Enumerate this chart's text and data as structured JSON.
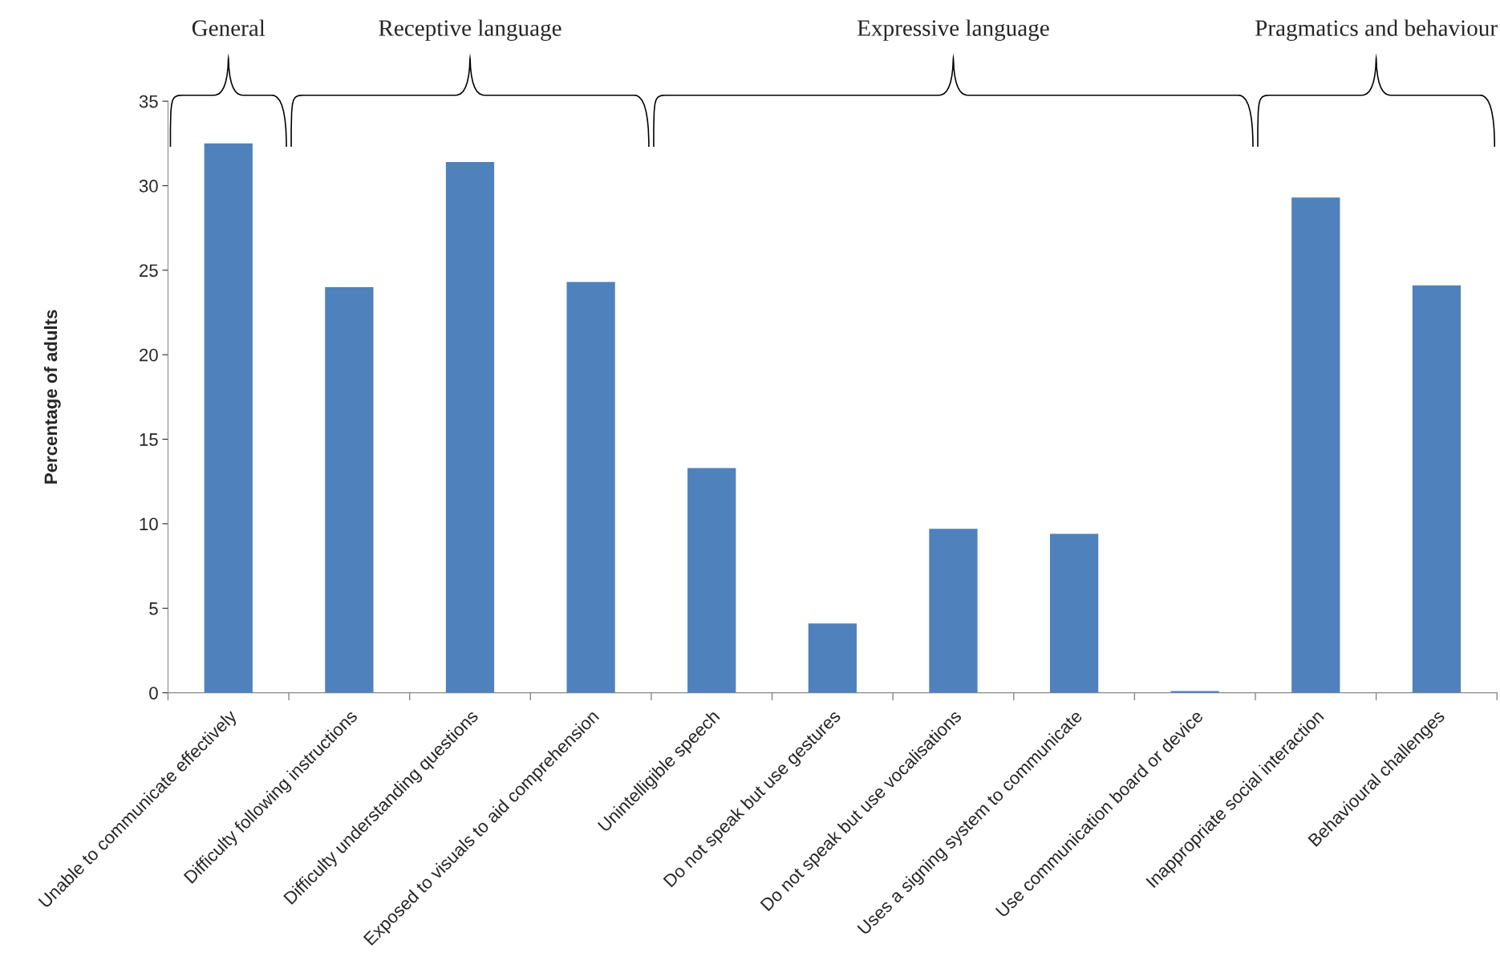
{
  "chart_data": {
    "type": "bar",
    "ylabel": "Percentage of adults",
    "categories": [
      "Unable to communicate effectively",
      "Difficulty following instructions",
      "Difficulty understanding questions",
      "Exposed to visuals to aid comprehension",
      "Unintelligible speech",
      "Do not speak but use gestures",
      "Do not speak but use vocalisations",
      "Uses a signing system to communicate",
      "Use communication board or device",
      "Inappropriate social interaction",
      "Behavioural challenges"
    ],
    "values": [
      32.5,
      24.0,
      31.4,
      24.3,
      13.3,
      4.1,
      9.7,
      9.4,
      0.1,
      29.3,
      24.1
    ],
    "color": "#4f81bd",
    "ylim": [
      0,
      35
    ],
    "yticks": [
      0,
      5,
      10,
      15,
      20,
      25,
      30,
      35
    ],
    "grid": false,
    "legend": false,
    "annotations": [
      "General",
      "Receptive language",
      "Expressive language",
      "Pragmatics and behaviour"
    ]
  }
}
